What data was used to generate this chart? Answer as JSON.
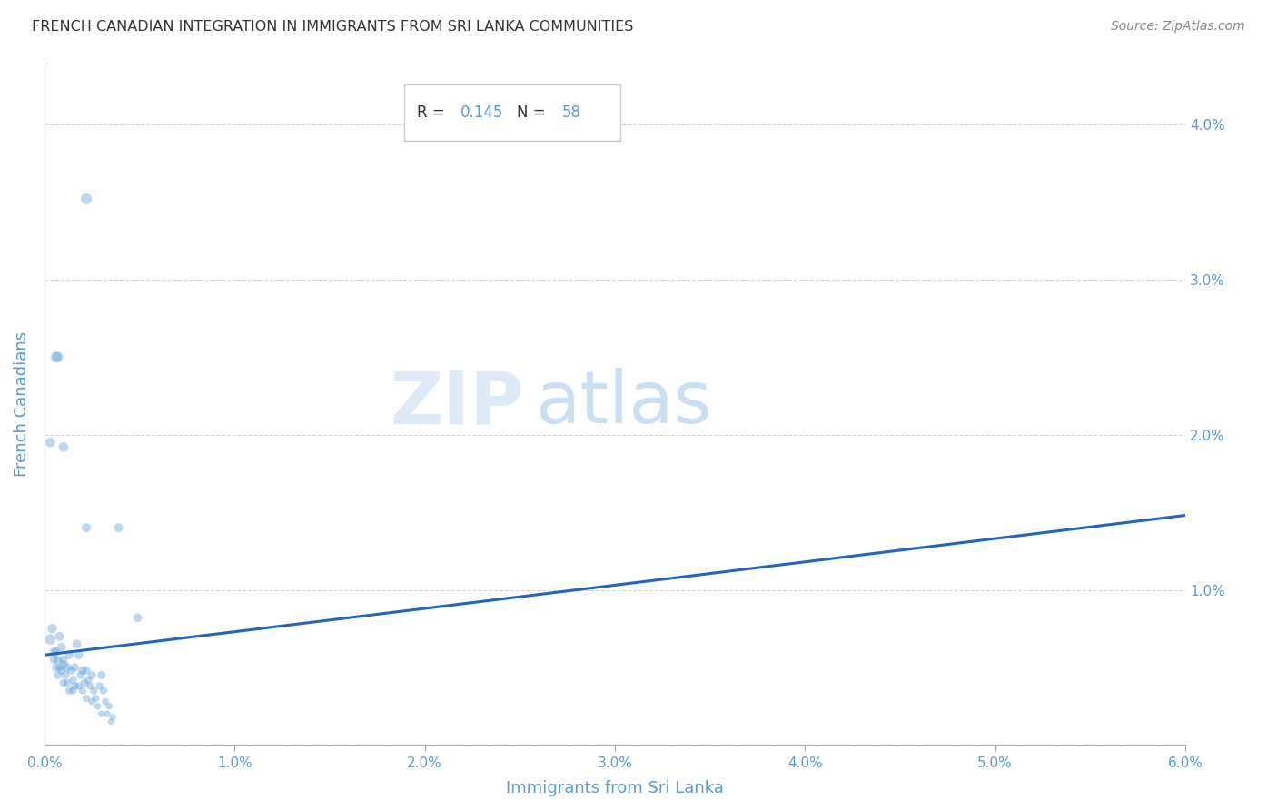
{
  "title": "FRENCH CANADIAN INTEGRATION IN IMMIGRANTS FROM SRI LANKA COMMUNITIES",
  "source": "Source: ZipAtlas.com",
  "xlabel": "Immigrants from Sri Lanka",
  "ylabel": "French Canadians",
  "R": 0.145,
  "N": 58,
  "xlim": [
    0.0,
    0.06
  ],
  "ylim": [
    0.0,
    0.044
  ],
  "xticks": [
    0.0,
    0.01,
    0.02,
    0.03,
    0.04,
    0.05,
    0.06
  ],
  "yticks": [
    0.0,
    0.01,
    0.02,
    0.03,
    0.04
  ],
  "xtick_labels": [
    "0.0%",
    "1.0%",
    "2.0%",
    "3.0%",
    "4.0%",
    "5.0%",
    "6.0%"
  ],
  "ytick_labels": [
    "",
    "1.0%",
    "2.0%",
    "3.0%",
    "4.0%"
  ],
  "scatter_color": "#5b9bd5",
  "scatter_alpha": 0.4,
  "line_color": "#2266bb",
  "watermark_zip": "ZIP",
  "watermark_atlas": "atlas",
  "background_color": "#ffffff",
  "points": [
    [
      0.0003,
      0.0068
    ],
    [
      0.0004,
      0.0075
    ],
    [
      0.0005,
      0.006
    ],
    [
      0.0005,
      0.0055
    ],
    [
      0.0006,
      0.005
    ],
    [
      0.0006,
      0.006
    ],
    [
      0.0007,
      0.0055
    ],
    [
      0.0007,
      0.0045
    ],
    [
      0.0008,
      0.007
    ],
    [
      0.0008,
      0.005
    ],
    [
      0.0009,
      0.0063
    ],
    [
      0.0009,
      0.0048
    ],
    [
      0.001,
      0.0052
    ],
    [
      0.001,
      0.004
    ],
    [
      0.001,
      0.0055
    ],
    [
      0.0011,
      0.0045
    ],
    [
      0.0012,
      0.005
    ],
    [
      0.0012,
      0.004
    ],
    [
      0.0013,
      0.0058
    ],
    [
      0.0013,
      0.0035
    ],
    [
      0.0014,
      0.0048
    ],
    [
      0.0015,
      0.0042
    ],
    [
      0.0015,
      0.0035
    ],
    [
      0.0016,
      0.005
    ],
    [
      0.0016,
      0.0038
    ],
    [
      0.0017,
      0.0065
    ],
    [
      0.0018,
      0.0058
    ],
    [
      0.0018,
      0.0038
    ],
    [
      0.0019,
      0.0045
    ],
    [
      0.002,
      0.0048
    ],
    [
      0.002,
      0.0035
    ],
    [
      0.0021,
      0.004
    ],
    [
      0.0022,
      0.0048
    ],
    [
      0.0022,
      0.003
    ],
    [
      0.0023,
      0.0042
    ],
    [
      0.0024,
      0.0038
    ],
    [
      0.0025,
      0.0045
    ],
    [
      0.0025,
      0.0028
    ],
    [
      0.0026,
      0.0035
    ],
    [
      0.0027,
      0.003
    ],
    [
      0.0028,
      0.0025
    ],
    [
      0.0029,
      0.0038
    ],
    [
      0.003,
      0.0045
    ],
    [
      0.003,
      0.002
    ],
    [
      0.0031,
      0.0035
    ],
    [
      0.0032,
      0.0028
    ],
    [
      0.0033,
      0.002
    ],
    [
      0.0034,
      0.0025
    ],
    [
      0.0035,
      0.0015
    ],
    [
      0.0036,
      0.0018
    ],
    [
      0.0003,
      0.0195
    ],
    [
      0.0006,
      0.025
    ],
    [
      0.0007,
      0.025
    ],
    [
      0.001,
      0.0192
    ],
    [
      0.0022,
      0.0352
    ],
    [
      0.0022,
      0.014
    ],
    [
      0.0039,
      0.014
    ],
    [
      0.0049,
      0.0082
    ]
  ],
  "point_sizes": [
    70,
    55,
    50,
    45,
    42,
    45,
    44,
    40,
    50,
    42,
    48,
    40,
    45,
    38,
    44,
    40,
    45,
    38,
    48,
    36,
    42,
    40,
    36,
    44,
    38,
    50,
    46,
    36,
    40,
    44,
    36,
    38,
    44,
    34,
    40,
    36,
    42,
    32,
    36,
    34,
    30,
    36,
    42,
    28,
    34,
    30,
    28,
    30,
    25,
    28,
    60,
    72,
    70,
    58,
    75,
    52,
    52,
    48
  ],
  "trendline_x": [
    0.0,
    0.06
  ],
  "trendline_y": [
    0.0058,
    0.0148
  ]
}
